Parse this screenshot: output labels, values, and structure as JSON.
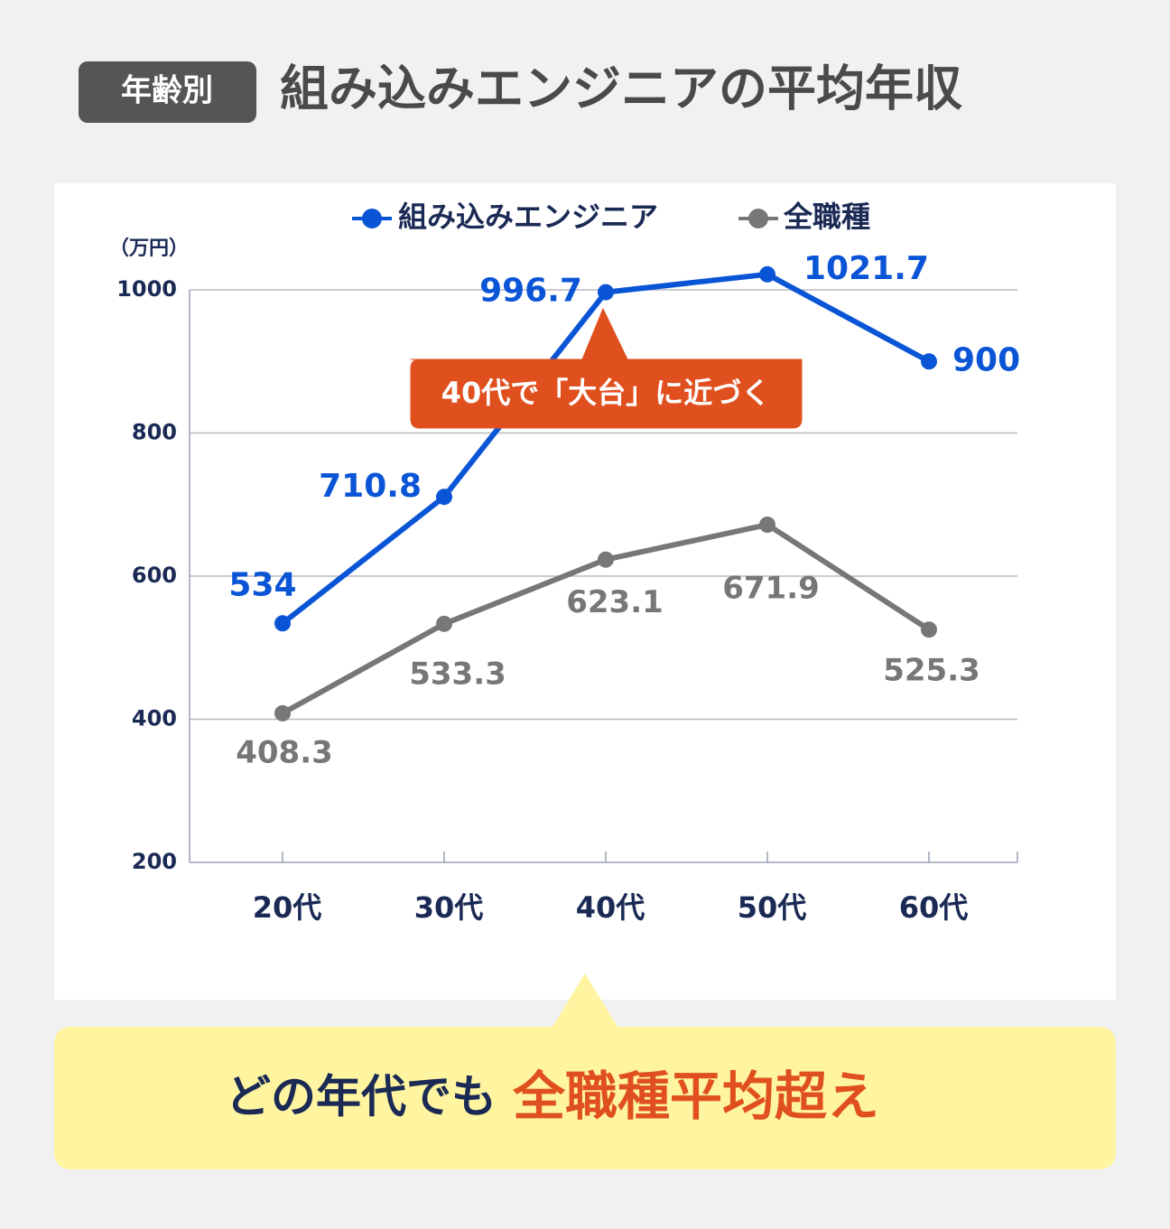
{
  "header": {
    "badge": "年齢別",
    "title": "組み込みエンジニアの平均年収"
  },
  "chart_data": {
    "type": "line",
    "y_label": "（万円）",
    "categories": [
      "20代",
      "30代",
      "40代",
      "50代",
      "60代"
    ],
    "series": [
      {
        "name": "組み込みエンジニア",
        "color": "#0a55d6",
        "values": [
          534,
          710.8,
          996.7,
          1021.7,
          900
        ]
      },
      {
        "name": "全職種",
        "color": "#777777",
        "values": [
          408.3,
          533.3,
          623.1,
          671.9,
          525.3
        ]
      }
    ],
    "ylim": [
      200,
      1000
    ],
    "yticks": [
      200,
      400,
      600,
      800,
      1000
    ],
    "grid": true,
    "annotation": "40代で「大台」に近づく"
  },
  "footer": {
    "text": "どの年代でも",
    "highlight": "全職種平均超え"
  }
}
